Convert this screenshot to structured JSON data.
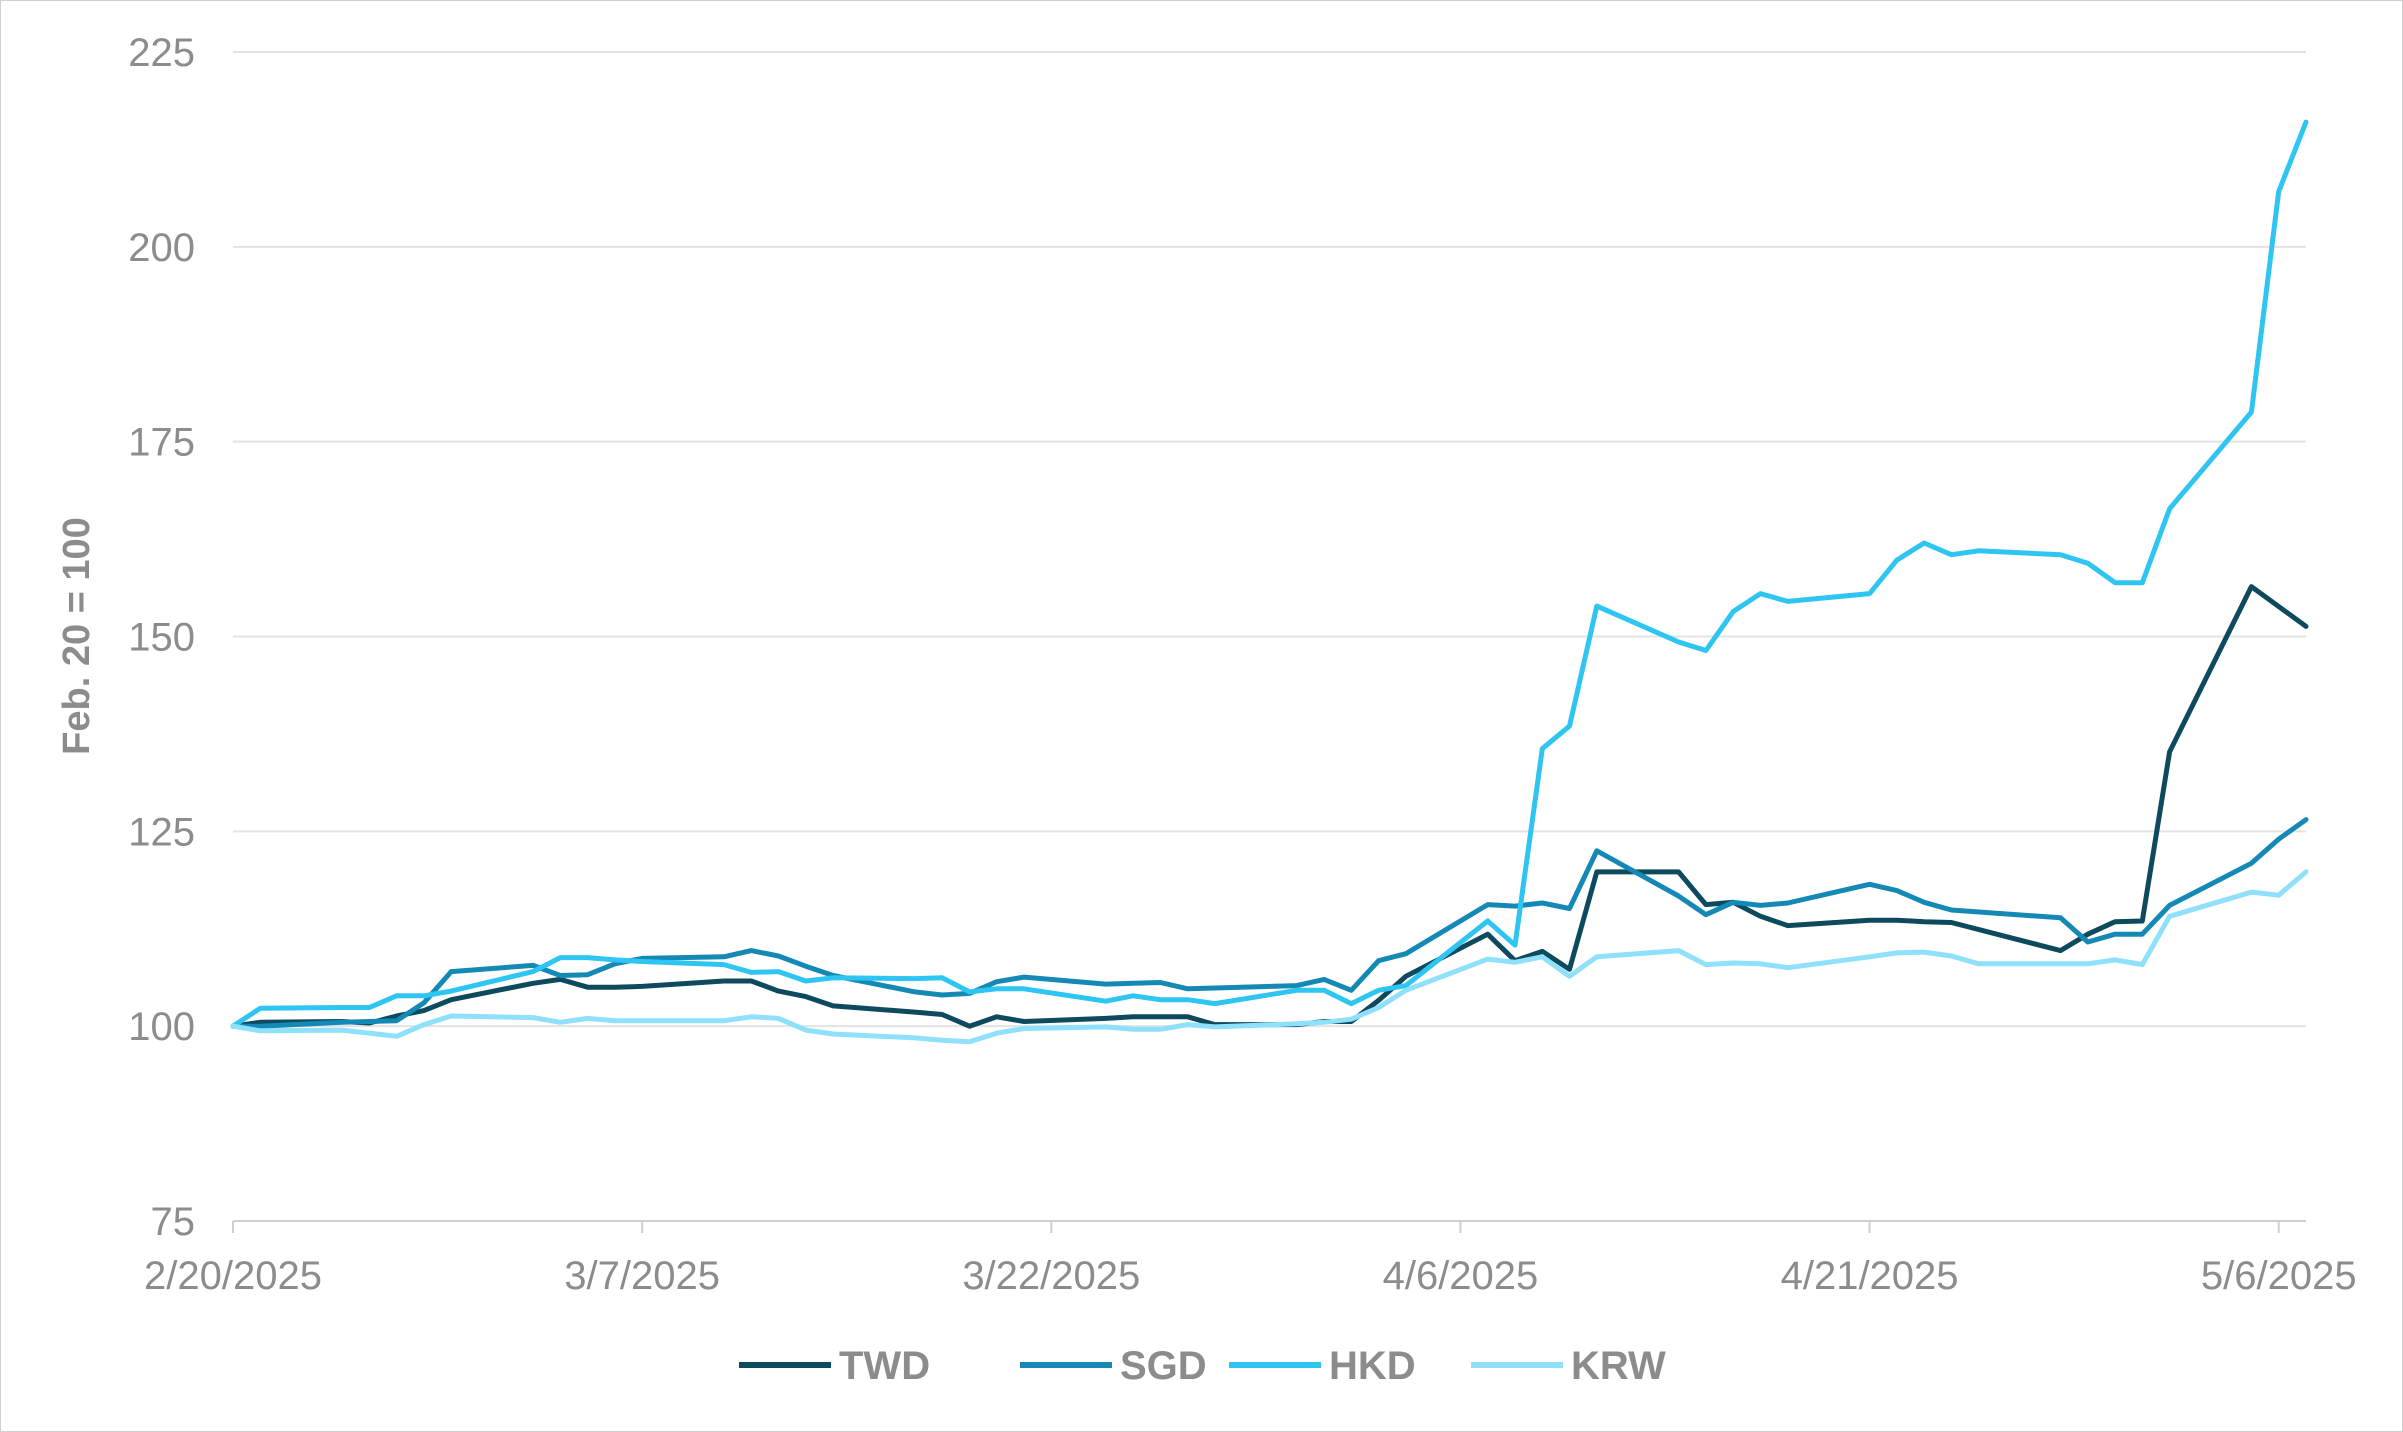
{
  "chart_data": {
    "type": "line",
    "ylabel": "Feb. 20 = 100",
    "xlabel": "",
    "ylim": [
      75,
      225
    ],
    "yticks": [
      "75",
      "100",
      "125",
      "150",
      "175",
      "200",
      "225"
    ],
    "xlim": [
      "2/20/2025",
      "5/7/2025"
    ],
    "xticks": [
      "2/20/2025",
      "3/7/2025",
      "3/22/2025",
      "4/6/2025",
      "4/21/2025",
      "5/6/2025"
    ],
    "grid": "horizontal",
    "legend_position": "bottom-center",
    "series": [
      {
        "name": "TWD",
        "color": "#0d4a5e",
        "points": [
          [
            "2/20/2025",
            100.0
          ],
          [
            "2/21/2025",
            100.5
          ],
          [
            "2/24/2025",
            100.6
          ],
          [
            "2/25/2025",
            100.4
          ],
          [
            "2/26/2025",
            101.3
          ],
          [
            "2/27/2025",
            102.0
          ],
          [
            "2/28/2025",
            103.4
          ],
          [
            "3/3/2025",
            105.5
          ],
          [
            "3/4/2025",
            106.0
          ],
          [
            "3/5/2025",
            105.0
          ],
          [
            "3/6/2025",
            105.0
          ],
          [
            "3/7/2025",
            105.1
          ],
          [
            "3/10/2025",
            105.8
          ],
          [
            "3/11/2025",
            105.8
          ],
          [
            "3/12/2025",
            104.5
          ],
          [
            "3/13/2025",
            103.8
          ],
          [
            "3/14/2025",
            102.6
          ],
          [
            "3/17/2025",
            101.8
          ],
          [
            "3/18/2025",
            101.5
          ],
          [
            "3/19/2025",
            100.0
          ],
          [
            "3/20/2025",
            101.2
          ],
          [
            "3/21/2025",
            100.6
          ],
          [
            "3/24/2025",
            101.0
          ],
          [
            "3/25/2025",
            101.2
          ],
          [
            "3/26/2025",
            101.2
          ],
          [
            "3/27/2025",
            101.2
          ],
          [
            "3/28/2025",
            100.2
          ],
          [
            "3/31/2025",
            100.2
          ],
          [
            "4/1/2025",
            100.6
          ],
          [
            "4/2/2025",
            100.6
          ],
          [
            "4/3/2025",
            103.3
          ],
          [
            "4/4/2025",
            106.4
          ],
          [
            "4/7/2025",
            111.8
          ],
          [
            "4/8/2025",
            108.4
          ],
          [
            "4/9/2025",
            109.6
          ],
          [
            "4/10/2025",
            107.3
          ],
          [
            "4/11/2025",
            119.8
          ],
          [
            "4/14/2025",
            119.8
          ],
          [
            "4/15/2025",
            115.6
          ],
          [
            "4/16/2025",
            115.9
          ],
          [
            "4/17/2025",
            114.1
          ],
          [
            "4/18/2025",
            112.9
          ],
          [
            "4/21/2025",
            113.6
          ],
          [
            "4/22/2025",
            113.6
          ],
          [
            "4/23/2025",
            113.4
          ],
          [
            "4/24/2025",
            113.3
          ],
          [
            "4/28/2025",
            109.7
          ],
          [
            "4/29/2025",
            111.8
          ],
          [
            "4/30/2025",
            113.4
          ],
          [
            "5/1/2025",
            113.5
          ],
          [
            "5/2/2025",
            135.2
          ],
          [
            "5/5/2025",
            156.4
          ],
          [
            "5/7/2025",
            151.3
          ]
        ]
      },
      {
        "name": "SGD",
        "color": "#1589b5",
        "points": [
          [
            "2/20/2025",
            100.0
          ],
          [
            "2/21/2025",
            100.0
          ],
          [
            "2/24/2025",
            100.5
          ],
          [
            "2/25/2025",
            100.6
          ],
          [
            "2/26/2025",
            100.7
          ],
          [
            "2/27/2025",
            103.0
          ],
          [
            "2/28/2025",
            107.0
          ],
          [
            "3/3/2025",
            107.8
          ],
          [
            "3/4/2025",
            106.5
          ],
          [
            "3/5/2025",
            106.6
          ],
          [
            "3/6/2025",
            108.0
          ],
          [
            "3/7/2025",
            108.7
          ],
          [
            "3/10/2025",
            108.9
          ],
          [
            "3/11/2025",
            109.7
          ],
          [
            "3/12/2025",
            109.0
          ],
          [
            "3/13/2025",
            107.7
          ],
          [
            "3/14/2025",
            106.5
          ],
          [
            "3/17/2025",
            104.4
          ],
          [
            "3/18/2025",
            104.0
          ],
          [
            "3/19/2025",
            104.2
          ],
          [
            "3/20/2025",
            105.7
          ],
          [
            "3/21/2025",
            106.3
          ],
          [
            "3/24/2025",
            105.4
          ],
          [
            "3/25/2025",
            105.5
          ],
          [
            "3/26/2025",
            105.6
          ],
          [
            "3/27/2025",
            104.8
          ],
          [
            "3/28/2025",
            104.9
          ],
          [
            "3/31/2025",
            105.2
          ],
          [
            "4/1/2025",
            106.0
          ],
          [
            "4/2/2025",
            104.6
          ],
          [
            "4/3/2025",
            108.4
          ],
          [
            "4/4/2025",
            109.3
          ],
          [
            "4/7/2025",
            115.6
          ],
          [
            "4/8/2025",
            115.4
          ],
          [
            "4/9/2025",
            115.8
          ],
          [
            "4/10/2025",
            115.1
          ],
          [
            "4/11/2025",
            122.5
          ],
          [
            "4/14/2025",
            116.7
          ],
          [
            "4/15/2025",
            114.3
          ],
          [
            "4/16/2025",
            115.9
          ],
          [
            "4/17/2025",
            115.5
          ],
          [
            "4/18/2025",
            115.8
          ],
          [
            "4/21/2025",
            118.2
          ],
          [
            "4/22/2025",
            117.4
          ],
          [
            "4/23/2025",
            115.9
          ],
          [
            "4/24/2025",
            114.9
          ],
          [
            "4/28/2025",
            113.9
          ],
          [
            "4/29/2025",
            110.8
          ],
          [
            "4/30/2025",
            111.8
          ],
          [
            "5/1/2025",
            111.8
          ],
          [
            "5/2/2025",
            115.5
          ],
          [
            "5/5/2025",
            120.9
          ],
          [
            "5/6/2025",
            124.0
          ],
          [
            "5/7/2025",
            126.5
          ]
        ]
      },
      {
        "name": "HKD",
        "color": "#2ec5f2",
        "points": [
          [
            "2/20/2025",
            100.0
          ],
          [
            "2/21/2025",
            102.3
          ],
          [
            "2/24/2025",
            102.4
          ],
          [
            "2/25/2025",
            102.4
          ],
          [
            "2/26/2025",
            103.9
          ],
          [
            "2/27/2025",
            103.9
          ],
          [
            "2/28/2025",
            104.5
          ],
          [
            "3/3/2025",
            107.0
          ],
          [
            "3/4/2025",
            108.8
          ],
          [
            "3/5/2025",
            108.8
          ],
          [
            "3/6/2025",
            108.5
          ],
          [
            "3/7/2025",
            108.3
          ],
          [
            "3/10/2025",
            107.9
          ],
          [
            "3/11/2025",
            106.9
          ],
          [
            "3/12/2025",
            107.0
          ],
          [
            "3/13/2025",
            105.8
          ],
          [
            "3/14/2025",
            106.2
          ],
          [
            "3/17/2025",
            106.1
          ],
          [
            "3/18/2025",
            106.2
          ],
          [
            "3/19/2025",
            104.4
          ],
          [
            "3/20/2025",
            104.8
          ],
          [
            "3/21/2025",
            104.8
          ],
          [
            "3/24/2025",
            103.2
          ],
          [
            "3/25/2025",
            103.9
          ],
          [
            "3/26/2025",
            103.4
          ],
          [
            "3/27/2025",
            103.4
          ],
          [
            "3/28/2025",
            102.9
          ],
          [
            "3/31/2025",
            104.6
          ],
          [
            "4/1/2025",
            104.6
          ],
          [
            "4/2/2025",
            102.9
          ],
          [
            "4/3/2025",
            104.6
          ],
          [
            "4/4/2025",
            105.2
          ],
          [
            "4/7/2025",
            113.5
          ],
          [
            "4/8/2025",
            110.4
          ],
          [
            "4/9/2025",
            135.6
          ],
          [
            "4/10/2025",
            138.5
          ],
          [
            "4/11/2025",
            153.9
          ],
          [
            "4/14/2025",
            149.3
          ],
          [
            "4/15/2025",
            148.2
          ],
          [
            "4/16/2025",
            153.2
          ],
          [
            "4/17/2025",
            155.5
          ],
          [
            "4/18/2025",
            154.5
          ],
          [
            "4/21/2025",
            155.5
          ],
          [
            "4/22/2025",
            159.8
          ],
          [
            "4/23/2025",
            162.0
          ],
          [
            "4/24/2025",
            160.5
          ],
          [
            "4/25/2025",
            161.0
          ],
          [
            "4/28/2025",
            160.5
          ],
          [
            "4/29/2025",
            159.4
          ],
          [
            "4/30/2025",
            156.9
          ],
          [
            "5/1/2025",
            156.9
          ],
          [
            "5/2/2025",
            166.4
          ],
          [
            "5/5/2025",
            178.8
          ],
          [
            "5/6/2025",
            207.1
          ],
          [
            "5/7/2025",
            216.0
          ]
        ]
      },
      {
        "name": "KRW",
        "color": "#8fe0fa",
        "points": [
          [
            "2/20/2025",
            100.0
          ],
          [
            "2/21/2025",
            99.4
          ],
          [
            "2/24/2025",
            99.5
          ],
          [
            "2/25/2025",
            99.1
          ],
          [
            "2/26/2025",
            98.7
          ],
          [
            "2/27/2025",
            100.2
          ],
          [
            "2/28/2025",
            101.3
          ],
          [
            "3/3/2025",
            101.1
          ],
          [
            "3/4/2025",
            100.5
          ],
          [
            "3/5/2025",
            101.0
          ],
          [
            "3/6/2025",
            100.7
          ],
          [
            "3/7/2025",
            100.7
          ],
          [
            "3/10/2025",
            100.7
          ],
          [
            "3/11/2025",
            101.2
          ],
          [
            "3/12/2025",
            101.0
          ],
          [
            "3/13/2025",
            99.5
          ],
          [
            "3/14/2025",
            99.0
          ],
          [
            "3/17/2025",
            98.5
          ],
          [
            "3/18/2025",
            98.2
          ],
          [
            "3/19/2025",
            98.0
          ],
          [
            "3/20/2025",
            99.1
          ],
          [
            "3/21/2025",
            99.7
          ],
          [
            "3/24/2025",
            99.9
          ],
          [
            "3/25/2025",
            99.6
          ],
          [
            "3/26/2025",
            99.6
          ],
          [
            "3/27/2025",
            100.2
          ],
          [
            "3/28/2025",
            99.9
          ],
          [
            "3/31/2025",
            100.3
          ],
          [
            "4/1/2025",
            100.5
          ],
          [
            "4/2/2025",
            100.9
          ],
          [
            "4/3/2025",
            102.4
          ],
          [
            "4/4/2025",
            104.6
          ],
          [
            "4/7/2025",
            108.6
          ],
          [
            "4/8/2025",
            108.2
          ],
          [
            "4/9/2025",
            108.9
          ],
          [
            "4/10/2025",
            106.4
          ],
          [
            "4/11/2025",
            108.9
          ],
          [
            "4/14/2025",
            109.7
          ],
          [
            "4/15/2025",
            107.9
          ],
          [
            "4/16/2025",
            108.1
          ],
          [
            "4/17/2025",
            108.0
          ],
          [
            "4/18/2025",
            107.5
          ],
          [
            "4/21/2025",
            108.9
          ],
          [
            "4/22/2025",
            109.4
          ],
          [
            "4/23/2025",
            109.5
          ],
          [
            "4/24/2025",
            109.0
          ],
          [
            "4/25/2025",
            108.0
          ],
          [
            "4/28/2025",
            108.0
          ],
          [
            "4/29/2025",
            108.0
          ],
          [
            "4/30/2025",
            108.5
          ],
          [
            "5/1/2025",
            107.9
          ],
          [
            "5/2/2025",
            114.1
          ],
          [
            "5/5/2025",
            117.2
          ],
          [
            "5/6/2025",
            116.8
          ],
          [
            "5/7/2025",
            119.8
          ]
        ]
      }
    ]
  }
}
